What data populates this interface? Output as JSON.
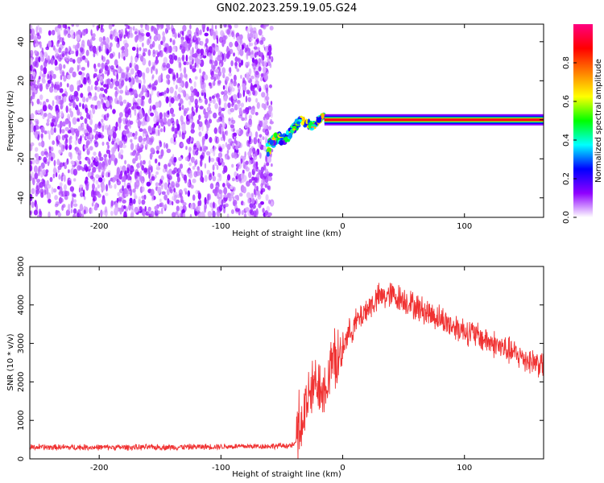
{
  "title": "GN02.2023.259.19.05.G24",
  "chart_data": [
    {
      "type": "heatmap",
      "xlabel": "Height of straight line (km)",
      "ylabel": "Frequency (Hz)",
      "xlim": [
        -257,
        165
      ],
      "ylim": [
        -50,
        49
      ],
      "xticks": [
        -200,
        -100,
        0,
        100
      ],
      "yticks": [
        -40,
        -20,
        0,
        20,
        40
      ],
      "colorbar": {
        "label": "Normalized spectral amplitude",
        "range": [
          0,
          1
        ],
        "ticks": [
          "0.0",
          "0.2",
          "0.4",
          "0.6",
          "0.8"
        ],
        "tick_values": [
          0.0,
          0.2,
          0.4,
          0.6,
          0.8
        ],
        "colors": [
          "#ffffff",
          "#8f00ff",
          "#0000ff",
          "#00ffff",
          "#00ff00",
          "#ffff00",
          "#ff8000",
          "#ff0000",
          "#ff0080"
        ]
      },
      "regions": {
        "noise_x_range": [
          -257,
          -58
        ],
        "noise_level": 0.08,
        "transition_x_range": [
          -62,
          -15
        ],
        "carrier_x_range": [
          -15,
          165
        ],
        "carrier_frequency": 0,
        "carrier_level": 0.9
      }
    },
    {
      "type": "line",
      "xlabel": "Height of straight line (km)",
      "ylabel": "SNR (10 * v/v)",
      "xlim": [
        -257,
        165
      ],
      "ylim": [
        0,
        5000
      ],
      "xticks": [
        -200,
        -100,
        0,
        100
      ],
      "yticks": [
        0,
        1000,
        2000,
        3000,
        4000,
        5000
      ],
      "color": "#f03232",
      "series": [
        {
          "x": [
            -257,
            -200,
            -150,
            -100,
            -60,
            -40,
            -35,
            -30,
            -25,
            -20,
            -15,
            -10,
            -5,
            0,
            10,
            20,
            30,
            40,
            50,
            60,
            70,
            80,
            90,
            100,
            110,
            120,
            130,
            140,
            150,
            165
          ],
          "values": [
            300,
            300,
            300,
            320,
            330,
            350,
            700,
            1400,
            1800,
            2000,
            1900,
            2300,
            2600,
            3000,
            3500,
            3900,
            4200,
            4250,
            4150,
            3950,
            3800,
            3650,
            3450,
            3350,
            3200,
            3050,
            2900,
            2750,
            2600,
            2450
          ]
        }
      ]
    }
  ]
}
